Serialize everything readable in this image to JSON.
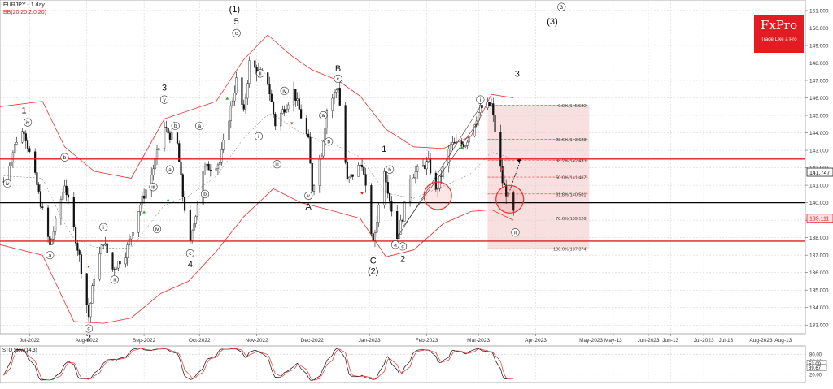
{
  "header": {
    "title": "EURJPY - 1 day",
    "indicator": "BB(20,20,2,0,20)"
  },
  "logo": {
    "brand": "FxPro",
    "tagline": "Trade Like a Pro"
  },
  "colors": {
    "bollinger": "#e8302e",
    "fib_fill": "#f6d6d6",
    "level_red": "#e31b23",
    "level_black": "#000000",
    "candle": "#111111"
  },
  "chart_data": {
    "type": "candlestick",
    "symbol": "EURJPY",
    "timeframe": "1 day",
    "ylim": [
      132.5,
      151.6
    ],
    "y_ticks": [
      133.0,
      134.0,
      135.0,
      136.0,
      137.0,
      138.0,
      139.0,
      140.0,
      141.0,
      142.0,
      143.0,
      144.0,
      145.0,
      146.0,
      147.0,
      148.0,
      149.0,
      150.0,
      151.0
    ],
    "x_labels": [
      "Jul-2022",
      "Aug-2022",
      "Sep-2022",
      "Oct-2022",
      "Nov-2022",
      "Dec-2022",
      "Jan-2023",
      "Feb-2023",
      "Mar-2023",
      "Apr-2023",
      "May-2023",
      "May-13",
      "Jun-2023",
      "Jun-13",
      "Jul-2023",
      "Jul-13",
      "Aug-2023",
      "Aug-13"
    ],
    "x_label_dates": [
      "2022-07-01",
      "2022-08-01",
      "2022-09-01",
      "2022-10-01",
      "2022-11-01",
      "2022-12-01",
      "2023-01-01",
      "2023-02-01",
      "2023-03-01",
      "2023-04-01",
      "2023-05-01",
      "2023-05-13",
      "2023-06-01",
      "2023-06-13",
      "2023-07-01",
      "2023-07-13",
      "2023-08-01",
      "2023-08-13"
    ],
    "x_range": [
      "2022-06-15",
      "2023-08-25"
    ],
    "price_path": [
      [
        "2022-06-17",
        141.2
      ],
      [
        "2022-06-24",
        143.6
      ],
      [
        "2022-06-28",
        144.2
      ],
      [
        "2022-07-05",
        141.0
      ],
      [
        "2022-07-12",
        137.5
      ],
      [
        "2022-07-20",
        141.1
      ],
      [
        "2022-07-28",
        136.9
      ],
      [
        "2022-08-02",
        133.5
      ],
      [
        "2022-08-05",
        135.8
      ],
      [
        "2022-08-10",
        137.8
      ],
      [
        "2022-08-15",
        136.2
      ],
      [
        "2022-08-22",
        137.1
      ],
      [
        "2022-08-29",
        139.6
      ],
      [
        "2022-09-05",
        141.6
      ],
      [
        "2022-09-12",
        144.3
      ],
      [
        "2022-09-19",
        143.3
      ],
      [
        "2022-09-22",
        140.4
      ],
      [
        "2022-09-26",
        137.6
      ],
      [
        "2022-10-03",
        141.9
      ],
      [
        "2022-10-12",
        142.3
      ],
      [
        "2022-10-21",
        147.0
      ],
      [
        "2022-10-25",
        145.1
      ],
      [
        "2022-10-28",
        148.0
      ],
      [
        "2022-11-07",
        146.9
      ],
      [
        "2022-11-11",
        144.5
      ],
      [
        "2022-11-21",
        146.4
      ],
      [
        "2022-11-29",
        143.5
      ],
      [
        "2022-12-01",
        140.8
      ],
      [
        "2022-12-06",
        142.9
      ],
      [
        "2022-12-09",
        145.3
      ],
      [
        "2022-12-15",
        146.7
      ],
      [
        "2022-12-20",
        141.2
      ],
      [
        "2022-12-28",
        142.3
      ],
      [
        "2023-01-03",
        137.6
      ],
      [
        "2023-01-09",
        142.0
      ],
      [
        "2023-01-12",
        140.2
      ],
      [
        "2023-01-16",
        138.0
      ],
      [
        "2023-01-19",
        139.2
      ],
      [
        "2023-01-23",
        141.5
      ],
      [
        "2023-02-02",
        142.3
      ],
      [
        "2023-02-06",
        140.6
      ],
      [
        "2023-02-14",
        143.3
      ],
      [
        "2023-02-22",
        143.4
      ],
      [
        "2023-03-02",
        145.4
      ],
      [
        "2023-03-08",
        145.6
      ],
      [
        "2023-03-14",
        141.2
      ],
      [
        "2023-03-20",
        139.4
      ]
    ],
    "bollinger_upper": [
      [
        "2022-06-15",
        145.5
      ],
      [
        "2022-07-08",
        145.8
      ],
      [
        "2022-07-20",
        143.2
      ],
      [
        "2022-08-05",
        141.8
      ],
      [
        "2022-08-25",
        141.4
      ],
      [
        "2022-09-12",
        144.8
      ],
      [
        "2022-09-26",
        145.3
      ],
      [
        "2022-10-10",
        145.8
      ],
      [
        "2022-10-25",
        148.2
      ],
      [
        "2022-11-07",
        149.6
      ],
      [
        "2022-11-20",
        148.4
      ],
      [
        "2022-12-01",
        147.6
      ],
      [
        "2022-12-15",
        147.0
      ],
      [
        "2022-12-27",
        146.1
      ],
      [
        "2023-01-10",
        144.2
      ],
      [
        "2023-01-25",
        143.2
      ],
      [
        "2023-02-10",
        143.1
      ],
      [
        "2023-02-25",
        143.8
      ],
      [
        "2023-03-08",
        146.2
      ],
      [
        "2023-03-20",
        146.0
      ]
    ],
    "bollinger_lower": [
      [
        "2022-06-15",
        137.6
      ],
      [
        "2022-07-08",
        137.0
      ],
      [
        "2022-07-25",
        133.2
      ],
      [
        "2022-08-10",
        133.1
      ],
      [
        "2022-08-25",
        133.4
      ],
      [
        "2022-09-10",
        134.8
      ],
      [
        "2022-09-25",
        135.5
      ],
      [
        "2022-10-10",
        137.2
      ],
      [
        "2022-10-25",
        139.2
      ],
      [
        "2022-11-10",
        140.8
      ],
      [
        "2022-11-25",
        140.0
      ],
      [
        "2022-12-10",
        139.6
      ],
      [
        "2022-12-27",
        139.1
      ],
      [
        "2023-01-10",
        136.9
      ],
      [
        "2023-01-25",
        137.3
      ],
      [
        "2023-02-10",
        138.8
      ],
      [
        "2023-02-25",
        139.5
      ],
      [
        "2023-03-08",
        139.6
      ],
      [
        "2023-03-20",
        139.0
      ]
    ],
    "horizontal_levels": [
      {
        "price": 142.5,
        "color": "#e31b23"
      },
      {
        "price": 140.0,
        "color": "#000000"
      },
      {
        "price": 137.8,
        "color": "#e31b23"
      }
    ],
    "fibonacci": {
      "x_from": "2023-03-06",
      "x_to": "2023-04-30",
      "levels": [
        {
          "label": "0.0%(145.580)",
          "price": 145.58
        },
        {
          "label": "23.6%(143.628)",
          "price": 143.628
        },
        {
          "label": "38.2%(142.433)",
          "price": 142.433
        },
        {
          "label": "50.0%(141.467)",
          "price": 141.467
        },
        {
          "label": "61.8%(140.501)",
          "price": 140.501
        },
        {
          "label": "78.6%(139.126)",
          "price": 139.126
        },
        {
          "label": "100.0%(137.374)",
          "price": 137.374
        }
      ]
    },
    "price_markers": [
      {
        "label": "141.747",
        "price": 141.747,
        "style": "dark"
      },
      {
        "label": "139.111",
        "price": 139.111,
        "style": "red"
      }
    ],
    "circles": [
      {
        "date": "2023-02-07",
        "price": 140.4
      },
      {
        "date": "2023-03-18",
        "price": 140.2
      }
    ],
    "wave_labels": [
      {
        "text": "1",
        "date": "2022-06-28",
        "price": 145.3,
        "style": "plain"
      },
      {
        "text": "iv",
        "date": "2022-06-30",
        "price": 144.6,
        "style": "circle"
      },
      {
        "text": "iv",
        "date": "2022-06-19",
        "price": 141.1,
        "style": "circle"
      },
      {
        "text": "b",
        "date": "2022-07-20",
        "price": 142.6,
        "style": "circle"
      },
      {
        "text": "a",
        "date": "2022-07-12",
        "price": 137.0,
        "style": "circle"
      },
      {
        "text": "2",
        "date": "2022-08-02",
        "price": 132.3,
        "style": "plain"
      },
      {
        "text": "c",
        "date": "2022-08-02",
        "price": 132.8,
        "style": "circle"
      },
      {
        "text": "i",
        "date": "2022-08-10",
        "price": 138.6,
        "style": "circle"
      },
      {
        "text": "ii",
        "date": "2022-08-16",
        "price": 135.6,
        "style": "circle"
      },
      {
        "text": "iii",
        "date": "2022-09-06",
        "price": 140.9,
        "style": "circle"
      },
      {
        "text": "iv",
        "date": "2022-09-08",
        "price": 138.5,
        "style": "circle"
      },
      {
        "text": "v",
        "date": "2022-09-12",
        "price": 145.9,
        "style": "circle"
      },
      {
        "text": "3",
        "date": "2022-09-12",
        "price": 146.6,
        "style": "plain"
      },
      {
        "text": "b",
        "date": "2022-09-18",
        "price": 144.4,
        "style": "circle"
      },
      {
        "text": "a",
        "date": "2022-09-15",
        "price": 141.9,
        "style": "circle"
      },
      {
        "text": "c",
        "date": "2022-09-26",
        "price": 137.1,
        "style": "circle"
      },
      {
        "text": "4",
        "date": "2022-09-26",
        "price": 136.5,
        "style": "plain"
      },
      {
        "text": "a",
        "date": "2022-10-01",
        "price": 144.4,
        "style": "circle"
      },
      {
        "text": "b",
        "date": "2022-10-04",
        "price": 140.5,
        "style": "circle"
      },
      {
        "text": "c",
        "date": "2022-10-21",
        "price": 149.7,
        "style": "circle"
      },
      {
        "text": "5",
        "date": "2022-10-21",
        "price": 150.4,
        "style": "plain"
      },
      {
        "text": "(1)",
        "date": "2022-10-20",
        "price": 151.1,
        "style": "plain"
      },
      {
        "text": "ii",
        "date": "2022-11-03",
        "price": 147.4,
        "style": "circle"
      },
      {
        "text": "i",
        "date": "2022-11-02",
        "price": 143.8,
        "style": "circle"
      },
      {
        "text": "iv",
        "date": "2022-11-16",
        "price": 146.4,
        "style": "circle"
      },
      {
        "text": "iii",
        "date": "2022-11-12",
        "price": 142.2,
        "style": "circle"
      },
      {
        "text": "a",
        "date": "2022-12-07",
        "price": 145.0,
        "style": "circle"
      },
      {
        "text": "b",
        "date": "2022-12-10",
        "price": 143.5,
        "style": "circle"
      },
      {
        "text": "v",
        "date": "2022-11-29",
        "price": 140.4,
        "style": "circle"
      },
      {
        "text": "A",
        "date": "2022-11-29",
        "price": 139.8,
        "style": "plain"
      },
      {
        "text": "c",
        "date": "2022-12-15",
        "price": 147.1,
        "style": "circle"
      },
      {
        "text": "B",
        "date": "2022-12-15",
        "price": 147.7,
        "style": "plain"
      },
      {
        "text": "C",
        "date": "2023-01-03",
        "price": 136.7,
        "style": "plain"
      },
      {
        "text": "(2)",
        "date": "2023-01-03",
        "price": 136.1,
        "style": "plain"
      },
      {
        "text": "1",
        "date": "2023-01-09",
        "price": 143.1,
        "style": "plain"
      },
      {
        "text": "b",
        "date": "2023-01-12",
        "price": 141.9,
        "style": "circle"
      },
      {
        "text": "a",
        "date": "2023-01-15",
        "price": 137.6,
        "style": "circle"
      },
      {
        "text": "c",
        "date": "2023-01-19",
        "price": 137.5,
        "style": "circle"
      },
      {
        "text": "2",
        "date": "2023-01-19",
        "price": 136.8,
        "style": "plain"
      },
      {
        "text": "i",
        "date": "2023-03-02",
        "price": 145.9,
        "style": "circle"
      },
      {
        "text": "3",
        "date": "2023-03-22",
        "price": 147.4,
        "style": "plain"
      },
      {
        "text": "(3)",
        "date": "2023-04-10",
        "price": 150.4,
        "style": "plain"
      },
      {
        "text": "3",
        "date": "2023-04-15",
        "price": 151.2,
        "style": "circle"
      },
      {
        "text": "ii",
        "date": "2023-03-21",
        "price": 138.3,
        "style": "circle"
      }
    ],
    "stochastic": {
      "label": "STO Slow(14,3)",
      "ylim": [
        0,
        100
      ],
      "y_ticks": [
        80,
        60,
        20
      ],
      "markers": [
        {
          "label": "53.00",
          "value": 53
        },
        {
          "label": "39.67",
          "value": 39.67
        }
      ]
    }
  }
}
